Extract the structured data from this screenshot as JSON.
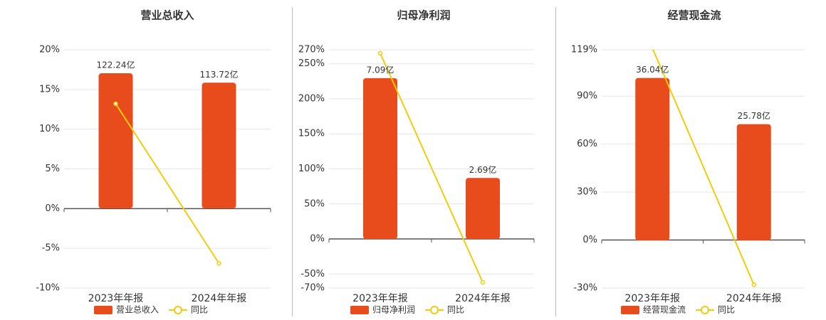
{
  "chart_data": [
    {
      "type": "bar",
      "title": "营业总收入",
      "categories": [
        "2023年年报",
        "2024年年报"
      ],
      "series": [
        {
          "name": "营业总收入",
          "type": "bar",
          "axis": "y2",
          "color": "#e84c1c",
          "values": [
            122.24,
            113.72
          ],
          "value_labels": [
            "122.24亿",
            "113.72亿"
          ]
        },
        {
          "name": "同比",
          "type": "line",
          "color": "#f2cc0c",
          "values": [
            13.2,
            -6.9
          ]
        }
      ],
      "ylim": [
        -10,
        20
      ],
      "yticks": [
        {
          "value": -10,
          "label": "-10%"
        },
        {
          "value": -5,
          "label": "-5%"
        },
        {
          "value": 0,
          "label": "0%"
        },
        {
          "value": 5,
          "label": "5%"
        },
        {
          "value": 10,
          "label": "10%"
        },
        {
          "value": 15,
          "label": "15%"
        },
        {
          "value": 20,
          "label": "20%"
        }
      ],
      "y2lim": [
        -72.1,
        143.5
      ],
      "grid": true
    },
    {
      "type": "bar",
      "title": "归母净利润",
      "categories": [
        "2023年年报",
        "2024年年报"
      ],
      "series": [
        {
          "name": "归母净利润",
          "type": "bar",
          "axis": "y2",
          "color": "#e84c1c",
          "values": [
            7.09,
            2.69
          ],
          "value_labels": [
            "7.09亿",
            "2.69亿"
          ]
        },
        {
          "name": "同比",
          "type": "line",
          "color": "#f2cc0c",
          "values": [
            265,
            -62
          ]
        }
      ],
      "ylim": [
        -70,
        270
      ],
      "yticks": [
        {
          "value": -70,
          "label": "-70%"
        },
        {
          "value": -50,
          "label": "-50%"
        },
        {
          "value": 0,
          "label": "0%"
        },
        {
          "value": 50,
          "label": "50%"
        },
        {
          "value": 100,
          "label": "100%"
        },
        {
          "value": 150,
          "label": "150%"
        },
        {
          "value": 200,
          "label": "200%"
        },
        {
          "value": 250,
          "label": "250%"
        },
        {
          "value": 270,
          "label": "270%"
        }
      ],
      "y2lim": [
        -2.16,
        8.34
      ],
      "grid": true
    },
    {
      "type": "bar",
      "title": "经营现金流",
      "categories": [
        "2023年年报",
        "2024年年报"
      ],
      "series": [
        {
          "name": "经营现金流",
          "type": "bar",
          "axis": "y2",
          "color": "#e84c1c",
          "values": [
            36.04,
            25.78
          ],
          "value_labels": [
            "36.04亿",
            "25.78亿"
          ]
        },
        {
          "name": "同比",
          "type": "line",
          "color": "#f2cc0c",
          "values": [
            120,
            -28
          ]
        }
      ],
      "ylim": [
        -30,
        119
      ],
      "yticks": [
        {
          "value": -30,
          "label": "-30%"
        },
        {
          "value": 0,
          "label": "0%"
        },
        {
          "value": 30,
          "label": "30%"
        },
        {
          "value": 60,
          "label": "60%"
        },
        {
          "value": 90,
          "label": "90%"
        },
        {
          "value": 119,
          "label": "119%"
        }
      ],
      "y2lim": [
        -10.6,
        42.3
      ],
      "grid": true
    }
  ]
}
